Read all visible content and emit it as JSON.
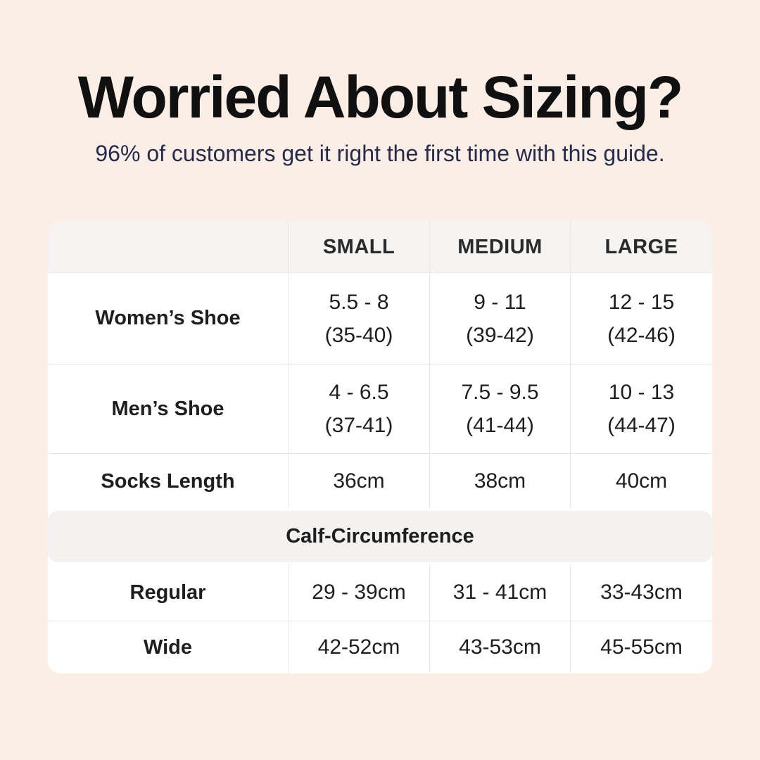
{
  "colors": {
    "background": "#fbeee5",
    "card": "#ffffff",
    "header_bg": "#f5f4f2",
    "section_band_bg": "#f3f2f0",
    "divider": "#e9e8e6",
    "title_color": "#101010",
    "subtitle_color": "#262b4d",
    "table_text_color": "#1e1e1e"
  },
  "chart_data": {
    "type": "table",
    "title": "Worried About Sizing?",
    "subtitle": "96% of customers get it right the first time with this guide.",
    "columns": [
      "",
      "SMALL",
      "MEDIUM",
      "LARGE"
    ],
    "rows": [
      {
        "label": "Women’s Shoe",
        "cells": [
          [
            "5.5 - 8",
            "(35-40)"
          ],
          [
            "9 - 11",
            "(39-42)"
          ],
          [
            "12 - 15",
            "(42-46)"
          ]
        ]
      },
      {
        "label": "Men’s Shoe",
        "cells": [
          [
            "4 - 6.5",
            "(37-41)"
          ],
          [
            "7.5 - 9.5",
            "(41-44)"
          ],
          [
            "10 - 13",
            "(44-47)"
          ]
        ]
      },
      {
        "label": "Socks Length",
        "cells": [
          [
            "36cm"
          ],
          [
            "38cm"
          ],
          [
            "40cm"
          ]
        ]
      },
      {
        "section": "Calf-Circumference"
      },
      {
        "label": "Regular",
        "cells": [
          [
            "29 - 39cm"
          ],
          [
            "31 - 41cm"
          ],
          [
            "33-43cm"
          ]
        ]
      },
      {
        "label": "Wide",
        "cells": [
          [
            "42-52cm"
          ],
          [
            "43-53cm"
          ],
          [
            "45-55cm"
          ]
        ]
      }
    ]
  }
}
